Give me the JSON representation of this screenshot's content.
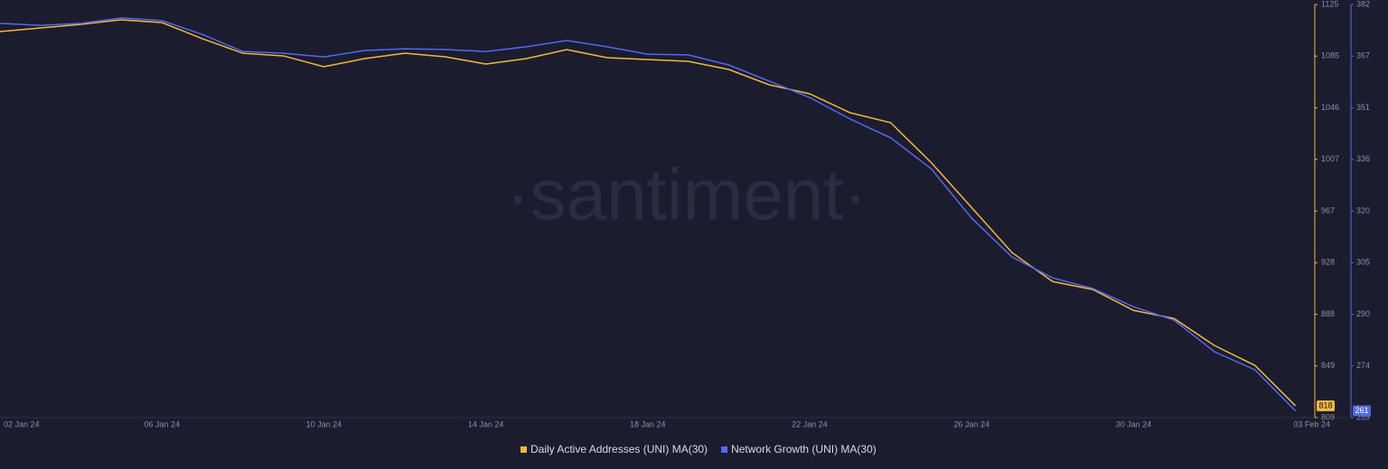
{
  "chart_data": {
    "type": "line",
    "watermark": "·santiment·",
    "categories": [
      "02 Jan 24",
      null,
      null,
      null,
      "06 Jan 24",
      null,
      null,
      null,
      "10 Jan 24",
      null,
      null,
      null,
      "14 Jan 24",
      null,
      null,
      null,
      "18 Jan 24",
      null,
      null,
      null,
      "22 Jan 24",
      null,
      null,
      null,
      "26 Jan 24",
      null,
      null,
      null,
      "30 Jan 24",
      null,
      null,
      null,
      "03 Feb 24"
    ],
    "series": [
      {
        "name": "Daily Active Addresses (UNI) MA(30)",
        "color": "#f2b83c",
        "axis": "y",
        "values": [
          1104.3,
          1107.1,
          1109.8,
          1113.3,
          1111.2,
          1098.8,
          1087.7,
          1085.7,
          1077.4,
          1083.6,
          1087.7,
          1085,
          1079.5,
          1083.6,
          1090.5,
          1084.3,
          1082.9,
          1081.5,
          1075.3,
          1063.6,
          1056.7,
          1042.2,
          1034.6,
          1004.2,
          969.7,
          935.2,
          913.1,
          906.9,
          891,
          884.8,
          864.1,
          848.9,
          818
        ]
      },
      {
        "name": "Network Growth (UNI) MA(30)",
        "color": "#5468ef",
        "axis": "y2",
        "values": [
          376.4,
          375.8,
          376.4,
          378,
          377.2,
          373.1,
          368,
          367.5,
          366.4,
          368.3,
          368.8,
          368.6,
          368,
          369.4,
          371.3,
          369.4,
          367.2,
          367,
          364,
          359.2,
          354.3,
          347.9,
          342.3,
          333.1,
          318.4,
          306.8,
          300.6,
          297.4,
          292,
          288,
          278.6,
          273.2,
          261
        ]
      }
    ],
    "ylim": [
      809,
      1125
    ],
    "yticks": [
      809,
      {
        "value": 848.5,
        "label": "849"
      },
      888,
      {
        "value": 927.5,
        "label": "928"
      },
      967,
      {
        "value": 1006.5,
        "label": "1007"
      },
      1046,
      {
        "value": 1085.5,
        "label": "1085"
      },
      1125
    ],
    "y2lim": [
      259,
      382
    ],
    "y2ticks": [
      259,
      {
        "value": 274.375,
        "label": "274"
      },
      {
        "value": 289.75,
        "label": "290"
      },
      {
        "value": 305.125,
        "label": "305"
      },
      {
        "value": 320.5,
        "label": "320"
      },
      {
        "value": 335.875,
        "label": "336"
      },
      {
        "value": 351.25,
        "label": "351"
      },
      {
        "value": 366.625,
        "label": "367"
      },
      382
    ],
    "legend": "bottom"
  }
}
